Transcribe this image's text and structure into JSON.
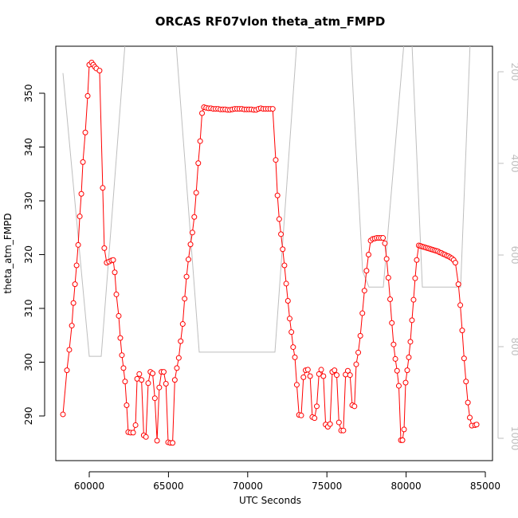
{
  "chart_data": {
    "type": "line",
    "title": "ORCAS RF07vlon theta_atm_FMPD",
    "x_label": "UTC Seconds",
    "y_label": "theta_atm_FMPD",
    "xlim": [
      57887,
      85453
    ],
    "ylim": [
      281.7,
      358.74
    ],
    "y2lim": [
      1048.7,
      144.3
    ],
    "xticks": [
      60000,
      65000,
      70000,
      75000,
      80000,
      85000
    ],
    "yticks": [
      290,
      300,
      310,
      320,
      330,
      340,
      350
    ],
    "y2ticks": [
      200,
      400,
      600,
      800,
      1000
    ],
    "grid": false,
    "series": [
      {
        "color": "#ff0000",
        "marker": "circle",
        "x": [
          58340,
          58590,
          58740,
          58900,
          59000,
          59100,
          59200,
          59300,
          59400,
          59500,
          59600,
          59750,
          59900,
          60000,
          60150,
          60250,
          60350,
          60450,
          60650,
          60850,
          60950,
          61100,
          61250,
          61400,
          61510,
          61610,
          61710,
          61860,
          61960,
          62060,
          62160,
          62260,
          62360,
          62460,
          62610,
          62770,
          62920,
          63020,
          63160,
          63300,
          63440,
          63580,
          63720,
          63860,
          64000,
          64140,
          64280,
          64420,
          64560,
          64700,
          64840,
          64980,
          65120,
          65260,
          65400,
          65530,
          65650,
          65770,
          65900,
          66020,
          66140,
          66260,
          66390,
          66510,
          66630,
          66750,
          66880,
          67000,
          67120,
          67240,
          67380,
          67530,
          67680,
          67830,
          67980,
          68130,
          68280,
          68430,
          68580,
          68730,
          68880,
          69030,
          69180,
          69330,
          69480,
          69630,
          69780,
          69930,
          70080,
          70230,
          70380,
          70530,
          70680,
          70830,
          70980,
          71130,
          71280,
          71430,
          71580,
          71770,
          71880,
          71990,
          72100,
          72210,
          72320,
          72430,
          72540,
          72650,
          72760,
          72870,
          72980,
          73100,
          73240,
          73380,
          73520,
          73660,
          73800,
          73940,
          74080,
          74220,
          74360,
          74500,
          74640,
          74780,
          74920,
          75060,
          75200,
          75340,
          75480,
          75620,
          75760,
          75900,
          76040,
          76180,
          76320,
          76460,
          76600,
          76740,
          76850,
          76980,
          77110,
          77240,
          77370,
          77500,
          77630,
          77760,
          77890,
          78020,
          78150,
          78280,
          78410,
          78540,
          78660,
          78770,
          78880,
          78990,
          79100,
          79210,
          79320,
          79430,
          79540,
          79670,
          79770,
          79870,
          79970,
          80070,
          80170,
          80270,
          80370,
          80470,
          80570,
          80670,
          80800,
          80910,
          81020,
          81130,
          81240,
          81350,
          81460,
          81570,
          81680,
          81790,
          81900,
          82010,
          82120,
          82230,
          82340,
          82450,
          82560,
          82670,
          82780,
          82890,
          83000,
          83110,
          83300,
          83420,
          83540,
          83660,
          83780,
          83900,
          84020,
          84150,
          84350,
          84450
        ],
        "values": [
          290.3,
          298.5,
          302.3,
          306.8,
          311,
          314.5,
          318,
          321.8,
          327.1,
          331.3,
          337.2,
          342.7,
          349.5,
          355.3,
          355.7,
          355.3,
          354.9,
          354.6,
          354.2,
          332.4,
          321.2,
          318.5,
          318.7,
          318.9,
          319,
          316.7,
          312.6,
          308.6,
          304.5,
          301.3,
          298.9,
          296.4,
          292,
          287,
          286.9,
          286.9,
          288.3,
          296.9,
          297.8,
          296.7,
          286.4,
          286.1,
          296.1,
          298.2,
          297.9,
          293.3,
          285.4,
          295.3,
          298.2,
          298.2,
          296,
          285.1,
          285,
          285,
          296.7,
          298.9,
          300.8,
          303.9,
          307.1,
          311.8,
          315.9,
          319.1,
          321.9,
          324.1,
          327,
          331.5,
          337,
          341.1,
          346.3,
          347.4,
          347.3,
          347.2,
          347.2,
          347.1,
          347.1,
          347.1,
          347.0,
          347.0,
          347.0,
          346.9,
          346.9,
          347.0,
          347.1,
          347.1,
          347.1,
          347.1,
          347.0,
          347.0,
          347.0,
          347.0,
          346.9,
          346.9,
          347.1,
          347.2,
          347.1,
          347.1,
          347.1,
          347.1,
          347.1,
          337.6,
          331,
          326.6,
          323.8,
          321,
          318,
          314.6,
          311.4,
          308.1,
          305.6,
          302.8,
          300.9,
          295.8,
          290.2,
          290.1,
          297.2,
          298.5,
          298.6,
          297.4,
          289.8,
          289.6,
          291.8,
          297.8,
          298.6,
          297.4,
          288.4,
          288,
          288.5,
          298.2,
          298.5,
          297.6,
          288.8,
          287.3,
          287.3,
          297.7,
          298.4,
          297.6,
          292,
          291.8,
          299.6,
          301.8,
          304.9,
          309.1,
          313.3,
          317,
          320,
          322.6,
          322.9,
          323.0,
          323.1,
          323.1,
          323.1,
          323.1,
          322.1,
          319.2,
          315.7,
          311.7,
          307.3,
          303.3,
          300.6,
          298.4,
          295.6,
          285.5,
          285.5,
          287.5,
          296.2,
          298.5,
          300.9,
          303.8,
          307.8,
          311.6,
          315.6,
          319,
          321.7,
          321.6,
          321.5,
          321.4,
          321.3,
          321.2,
          321.1,
          321.0,
          320.9,
          320.8,
          320.7,
          320.6,
          320.4,
          320.3,
          320.1,
          320.0,
          319.8,
          319.7,
          319.5,
          319.3,
          319.0,
          318.5,
          314.5,
          310.6,
          305.9,
          300.7,
          296.4,
          292.5,
          289.7,
          288.2,
          288.3,
          288.4
        ]
      },
      {
        "color": "#bebebe",
        "axis": "y2",
        "x": [
          58340,
          60000,
          60755,
          62565,
          65180,
          66942,
          71720,
          73380,
          76278,
          77254,
          77656,
          78561,
          80200,
          81026,
          83441,
          84195
        ],
        "values": [
          203,
          821,
          821,
          0,
          0,
          812,
          812,
          0,
          0,
          635,
          670,
          670,
          0,
          670,
          670,
          0
        ]
      }
    ]
  }
}
